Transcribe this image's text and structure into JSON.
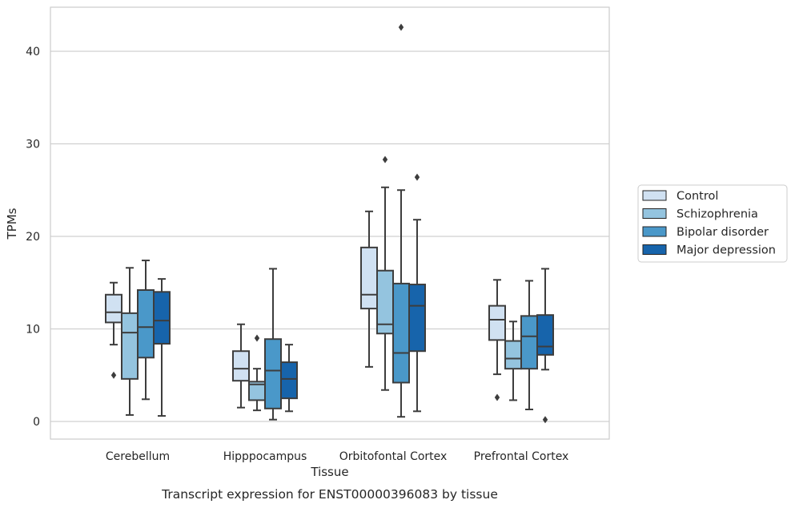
{
  "chart_data": {
    "type": "boxplot",
    "caption": "Transcript expression for ENST00000396083 by tissue",
    "xlabel": "Tissue",
    "ylabel": "TPMs",
    "ylim": [
      -1.8,
      44.8
    ],
    "yticks": [
      0,
      10,
      20,
      30,
      40
    ],
    "grid": "horizontal",
    "legend_position": "right",
    "categories": [
      "Cerebellum",
      "Hipppocampus",
      "Orbitofontal Cortex",
      "Prefrontal Cortex"
    ],
    "series": [
      {
        "name": "Control",
        "color": "#d0e1f2",
        "boxes": [
          {
            "whislo": 8.3,
            "q1": 10.7,
            "med": 11.8,
            "q3": 13.7,
            "whishi": 15.0,
            "fliers": [
              5.0
            ]
          },
          {
            "whislo": 1.5,
            "q1": 4.4,
            "med": 5.7,
            "q3": 7.6,
            "whishi": 10.5,
            "fliers": []
          },
          {
            "whislo": 5.9,
            "q1": 12.2,
            "med": 13.7,
            "q3": 18.8,
            "whishi": 22.7,
            "fliers": []
          },
          {
            "whislo": 5.1,
            "q1": 8.8,
            "med": 11.0,
            "q3": 12.5,
            "whishi": 15.3,
            "fliers": [
              2.6
            ]
          }
        ]
      },
      {
        "name": "Schizophrenia",
        "color": "#94c4df",
        "boxes": [
          {
            "whislo": 0.7,
            "q1": 4.6,
            "med": 9.6,
            "q3": 11.7,
            "whishi": 16.6,
            "fliers": []
          },
          {
            "whislo": 1.2,
            "q1": 2.3,
            "med": 4.0,
            "q3": 4.3,
            "whishi": 5.7,
            "fliers": [
              9.0
            ]
          },
          {
            "whislo": 3.4,
            "q1": 9.5,
            "med": 10.5,
            "q3": 16.3,
            "whishi": 25.3,
            "fliers": [
              28.3
            ]
          },
          {
            "whislo": 2.3,
            "q1": 5.7,
            "med": 6.8,
            "q3": 8.7,
            "whishi": 10.8,
            "fliers": []
          }
        ]
      },
      {
        "name": "Bipolar disorder",
        "color": "#4a98c9",
        "boxes": [
          {
            "whislo": 2.4,
            "q1": 6.9,
            "med": 10.2,
            "q3": 14.2,
            "whishi": 17.4,
            "fliers": []
          },
          {
            "whislo": 0.2,
            "q1": 1.4,
            "med": 5.5,
            "q3": 8.9,
            "whishi": 16.5,
            "fliers": []
          },
          {
            "whislo": 0.5,
            "q1": 4.2,
            "med": 7.4,
            "q3": 14.9,
            "whishi": 25.0,
            "fliers": [
              42.6
            ]
          },
          {
            "whislo": 1.3,
            "q1": 5.7,
            "med": 9.2,
            "q3": 11.4,
            "whishi": 15.2,
            "fliers": []
          }
        ]
      },
      {
        "name": "Major depression",
        "color": "#1764ab",
        "boxes": [
          {
            "whislo": 0.6,
            "q1": 8.4,
            "med": 10.9,
            "q3": 14.0,
            "whishi": 15.4,
            "fliers": []
          },
          {
            "whislo": 1.1,
            "q1": 2.5,
            "med": 4.6,
            "q3": 6.4,
            "whishi": 8.3,
            "fliers": []
          },
          {
            "whislo": 1.1,
            "q1": 7.6,
            "med": 12.5,
            "q3": 14.8,
            "whishi": 21.8,
            "fliers": [
              26.4
            ]
          },
          {
            "whislo": 5.6,
            "q1": 7.2,
            "med": 8.1,
            "q3": 11.5,
            "whishi": 16.5,
            "fliers": [
              0.2
            ]
          }
        ]
      }
    ]
  }
}
